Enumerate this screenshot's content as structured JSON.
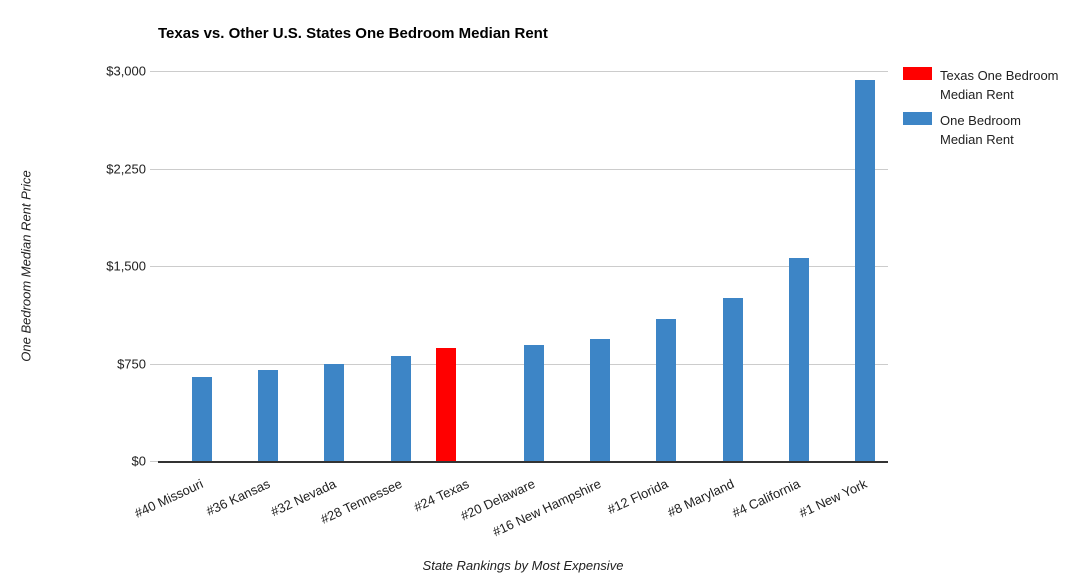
{
  "chart": {
    "title": "Texas vs. Other U.S. States One Bedroom Median Rent",
    "y_axis_title": "One Bedroom Median Rent Price",
    "x_axis_title": "State Rankings by Most Expensive",
    "y_ticks": [
      "$3,000",
      "$2,250",
      "$1,500",
      "$750",
      "$0"
    ],
    "legend": {
      "items": [
        {
          "line1": "Texas One Bedroom",
          "line2": "Median Rent",
          "color": "#ff0000"
        },
        {
          "line1": "One Bedroom",
          "line2": "Median Rent",
          "color": "#3d85c6"
        }
      ]
    },
    "colors": {
      "texas_bar": "#ff0000",
      "other_bar": "#3d85c6",
      "gridline": "#cccccc",
      "axis_line": "#333333"
    }
  },
  "chart_data": {
    "type": "bar",
    "title": "Texas vs. Other U.S. States One Bedroom Median Rent",
    "xlabel": "State Rankings by Most Expensive",
    "ylabel": "One Bedroom Median Rent Price",
    "ylim": [
      0,
      3000
    ],
    "y_tick_interval": 750,
    "grid": true,
    "legend_position": "top-right",
    "categories": [
      "#40 Missouri",
      "#36 Kansas",
      "#32 Nevada",
      "#28 Tennessee",
      "#24 Texas",
      "#20 Delaware",
      "#16 New Hampshire",
      "#12 Florida",
      "#8 Maryland",
      "#4 California",
      "#1 New York"
    ],
    "series": [
      {
        "name": "Texas One Bedroom Median Rent",
        "color": "#ff0000",
        "values": [
          null,
          null,
          null,
          null,
          870,
          null,
          null,
          null,
          null,
          null,
          null
        ]
      },
      {
        "name": "One Bedroom Median Rent",
        "color": "#3d85c6",
        "values": [
          650,
          700,
          750,
          805,
          null,
          895,
          940,
          1095,
          1255,
          1560,
          2930
        ]
      }
    ]
  }
}
